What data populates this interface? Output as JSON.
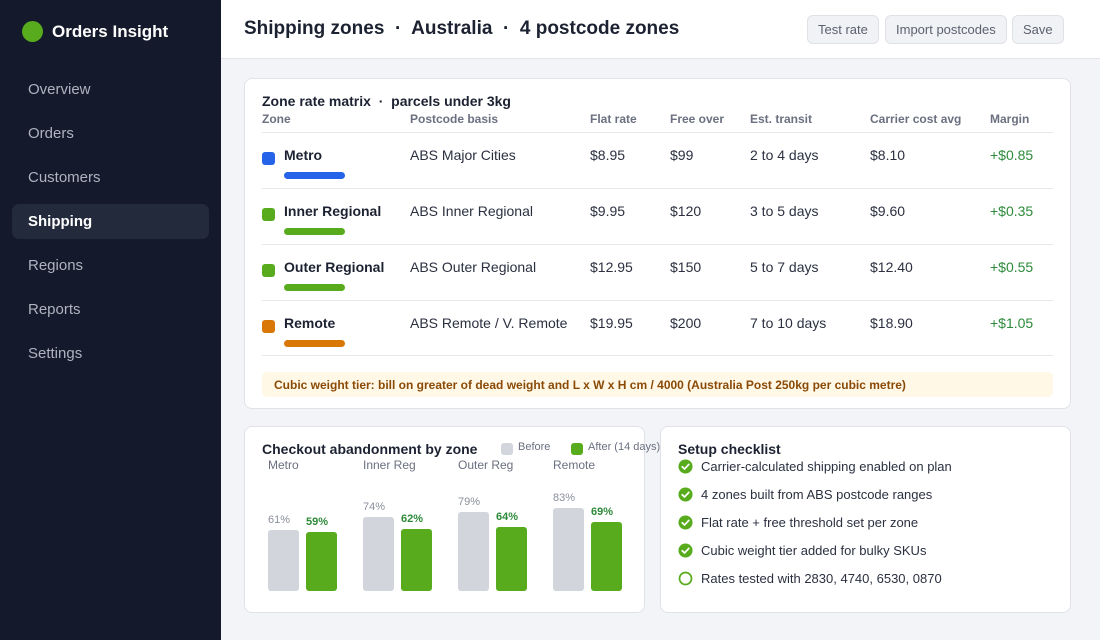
{
  "app": {
    "name": "Orders Insight",
    "brand_color": "#57ab1c"
  },
  "sidebar": {
    "items": [
      {
        "label": "Overview",
        "active": false
      },
      {
        "label": "Orders",
        "active": false
      },
      {
        "label": "Customers",
        "active": false
      },
      {
        "label": "Shipping",
        "active": true
      },
      {
        "label": "Regions",
        "active": false
      },
      {
        "label": "Reports",
        "active": false
      },
      {
        "label": "Settings",
        "active": false
      }
    ]
  },
  "header": {
    "title": "Shipping zones  ·  Australia  ·  4 postcode zones",
    "buttons": {
      "test_rate": "Test rate",
      "import_postcodes": "Import postcodes",
      "save": "Save"
    }
  },
  "matrix": {
    "title": "Zone rate matrix  ·  parcels under 3kg",
    "headers": {
      "zone": "Zone",
      "basis": "Postcode basis",
      "flat": "Flat rate",
      "free": "Free over",
      "transit": "Est. transit",
      "carrier": "Carrier cost avg",
      "margin": "Margin"
    },
    "rows": [
      {
        "zone": "Metro",
        "color": "#2563e8",
        "basis": "ABS Major Cities",
        "flat": "$8.95",
        "free": "$99",
        "transit": "2 to 4 days",
        "carrier": "$8.10",
        "margin": "+$0.85"
      },
      {
        "zone": "Inner Regional",
        "color": "#57ab1c",
        "basis": "ABS Inner Regional",
        "flat": "$9.95",
        "free": "$120",
        "transit": "3 to 5 days",
        "carrier": "$9.60",
        "margin": "+$0.35"
      },
      {
        "zone": "Outer Regional",
        "color": "#57ab1c",
        "basis": "ABS Outer Regional",
        "flat": "$12.95",
        "free": "$150",
        "transit": "5 to 7 days",
        "carrier": "$12.40",
        "margin": "+$0.55"
      },
      {
        "zone": "Remote",
        "color": "#d97706",
        "basis": "ABS Remote / V. Remote",
        "flat": "$19.95",
        "free": "$200",
        "transit": "7 to 10 days",
        "carrier": "$18.90",
        "margin": "+$1.05"
      }
    ],
    "note": "Cubic weight tier: bill on greater of dead weight and L x W x H cm / 4000 (Australia Post 250kg per cubic metre)"
  },
  "abandonment": {
    "title": "Checkout abandonment by zone",
    "legend_before": "Before",
    "legend_after": "After (14 days)",
    "before_color": "#d2d5dc",
    "after_color": "#57ab1c"
  },
  "chart_data": {
    "type": "bar",
    "title": "Checkout abandonment by zone",
    "categories": [
      "Metro",
      "Inner Reg",
      "Outer Reg",
      "Remote"
    ],
    "series": [
      {
        "name": "Before",
        "values": [
          61,
          74,
          79,
          83
        ],
        "labels": [
          "61%",
          "74%",
          "79%",
          "83%"
        ]
      },
      {
        "name": "After (14 days)",
        "values": [
          59,
          62,
          64,
          69
        ],
        "labels": [
          "59%",
          "62%",
          "64%",
          "69%"
        ]
      }
    ],
    "unit": "%",
    "legend": "top-right",
    "grid": false
  },
  "checklist": {
    "title": "Setup checklist",
    "items": [
      {
        "text": "Carrier-calculated shipping enabled on plan",
        "done": true
      },
      {
        "text": "4 zones built from ABS postcode ranges",
        "done": true
      },
      {
        "text": "Flat rate + free threshold set per zone",
        "done": true
      },
      {
        "text": "Cubic weight tier added for bulky SKUs",
        "done": true
      },
      {
        "text": "Rates tested with 2830, 4740, 6530, 0870",
        "done": false
      }
    ]
  }
}
